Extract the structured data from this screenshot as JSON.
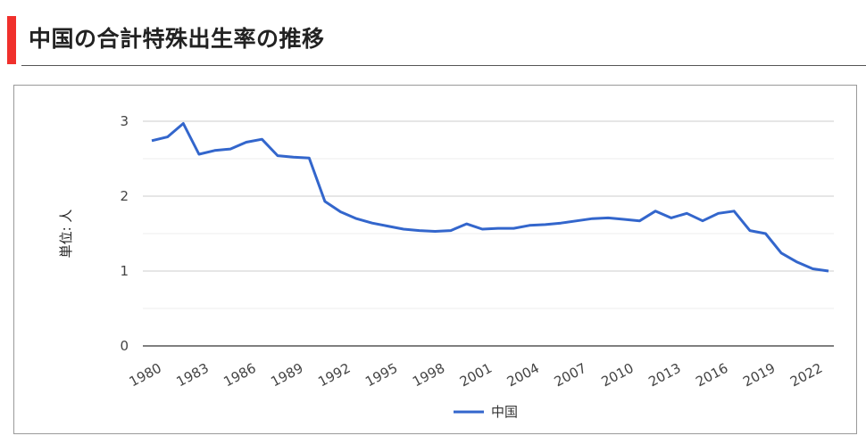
{
  "header": {
    "title": "中国の合計特殊出生率の推移",
    "accent_color": "#f0302c"
  },
  "chart_data": {
    "type": "line",
    "title": "",
    "xlabel": "",
    "ylabel": "単位: 人",
    "ylim": [
      0,
      3
    ],
    "yticks": [
      "0",
      "1",
      "2",
      "3"
    ],
    "xticks": [
      "1980",
      "1983",
      "1986",
      "1989",
      "1992",
      "1995",
      "1998",
      "2001",
      "2004",
      "2007",
      "2010",
      "2013",
      "2016",
      "2019",
      "2022"
    ],
    "grid": true,
    "legend_position": "bottom",
    "x": [
      1980,
      1981,
      1982,
      1983,
      1984,
      1985,
      1986,
      1987,
      1988,
      1989,
      1990,
      1991,
      1992,
      1993,
      1994,
      1995,
      1996,
      1997,
      1998,
      1999,
      2000,
      2001,
      2002,
      2003,
      2004,
      2005,
      2006,
      2007,
      2008,
      2009,
      2010,
      2011,
      2012,
      2013,
      2014,
      2015,
      2016,
      2017,
      2018,
      2019,
      2020,
      2021,
      2022,
      2023
    ],
    "series": [
      {
        "name": "中国",
        "color": "#3366cc",
        "values": [
          2.74,
          2.79,
          2.97,
          2.56,
          2.61,
          2.63,
          2.72,
          2.76,
          2.54,
          2.52,
          2.51,
          1.93,
          1.79,
          1.7,
          1.64,
          1.6,
          1.56,
          1.54,
          1.53,
          1.54,
          1.63,
          1.56,
          1.57,
          1.57,
          1.61,
          1.62,
          1.64,
          1.67,
          1.7,
          1.71,
          1.69,
          1.67,
          1.8,
          1.71,
          1.77,
          1.67,
          1.77,
          1.8,
          1.54,
          1.5,
          1.24,
          1.12,
          1.03,
          1.0
        ]
      }
    ]
  }
}
